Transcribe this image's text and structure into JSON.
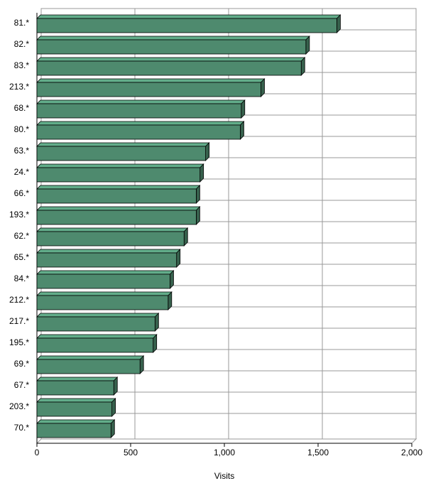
{
  "chart_data": {
    "type": "bar",
    "orientation": "horizontal",
    "x_label": "Visits",
    "categories": [
      "81.*",
      "82.*",
      "83.*",
      "213.*",
      "68.*",
      "80.*",
      "63.*",
      "24.*",
      "66.*",
      "193.*",
      "62.*",
      "65.*",
      "84.*",
      "212.*",
      "217.*",
      "195.*",
      "69.*",
      "67.*",
      "203.*",
      "70.*"
    ],
    "values": [
      1600,
      1435,
      1410,
      1195,
      1090,
      1085,
      900,
      870,
      850,
      850,
      785,
      745,
      710,
      700,
      630,
      620,
      550,
      410,
      400,
      395
    ],
    "color": "#4e8a6e",
    "xlim": [
      0,
      2000
    ],
    "xticks": [
      0,
      500,
      {
        "value": 1000,
        "label": "1,000"
      },
      {
        "value": 1500,
        "label": "1,500"
      },
      {
        "value": 2000,
        "label": "2,000"
      }
    ],
    "grid": true
  }
}
